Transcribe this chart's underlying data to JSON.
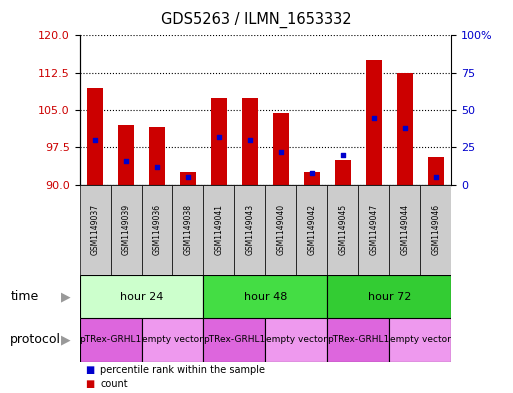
{
  "title": "GDS5263 / ILMN_1653332",
  "samples": [
    "GSM1149037",
    "GSM1149039",
    "GSM1149036",
    "GSM1149038",
    "GSM1149041",
    "GSM1149043",
    "GSM1149040",
    "GSM1149042",
    "GSM1149045",
    "GSM1149047",
    "GSM1149044",
    "GSM1149046"
  ],
  "bar_values": [
    109.5,
    102.0,
    101.5,
    92.5,
    107.5,
    107.5,
    104.5,
    92.5,
    95.0,
    115.0,
    112.5,
    95.5
  ],
  "percentile_values": [
    30,
    16,
    12,
    5,
    32,
    30,
    22,
    8,
    20,
    45,
    38,
    5
  ],
  "y_min": 90,
  "y_max": 120,
  "y_ticks": [
    90,
    97.5,
    105,
    112.5,
    120
  ],
  "y2_ticks": [
    0,
    25,
    50,
    75,
    100
  ],
  "bar_color": "#cc0000",
  "dot_color": "#0000cc",
  "time_groups": [
    {
      "label": "hour 24",
      "start": 0,
      "end": 4,
      "color": "#ccffcc"
    },
    {
      "label": "hour 48",
      "start": 4,
      "end": 8,
      "color": "#44dd44"
    },
    {
      "label": "hour 72",
      "start": 8,
      "end": 12,
      "color": "#33cc33"
    }
  ],
  "protocol_groups": [
    {
      "label": "pTRex-GRHL1",
      "start": 0,
      "end": 2,
      "color": "#dd66dd"
    },
    {
      "label": "empty vector",
      "start": 2,
      "end": 4,
      "color": "#ee99ee"
    },
    {
      "label": "pTRex-GRHL1",
      "start": 4,
      "end": 6,
      "color": "#dd66dd"
    },
    {
      "label": "empty vector",
      "start": 6,
      "end": 8,
      "color": "#ee99ee"
    },
    {
      "label": "pTRex-GRHL1",
      "start": 8,
      "end": 10,
      "color": "#dd66dd"
    },
    {
      "label": "empty vector",
      "start": 10,
      "end": 12,
      "color": "#ee99ee"
    }
  ],
  "time_label": "time",
  "protocol_label": "protocol",
  "legend_count": "count",
  "legend_percentile": "percentile rank within the sample",
  "sample_box_color": "#cccccc",
  "fig_bg": "#ffffff"
}
